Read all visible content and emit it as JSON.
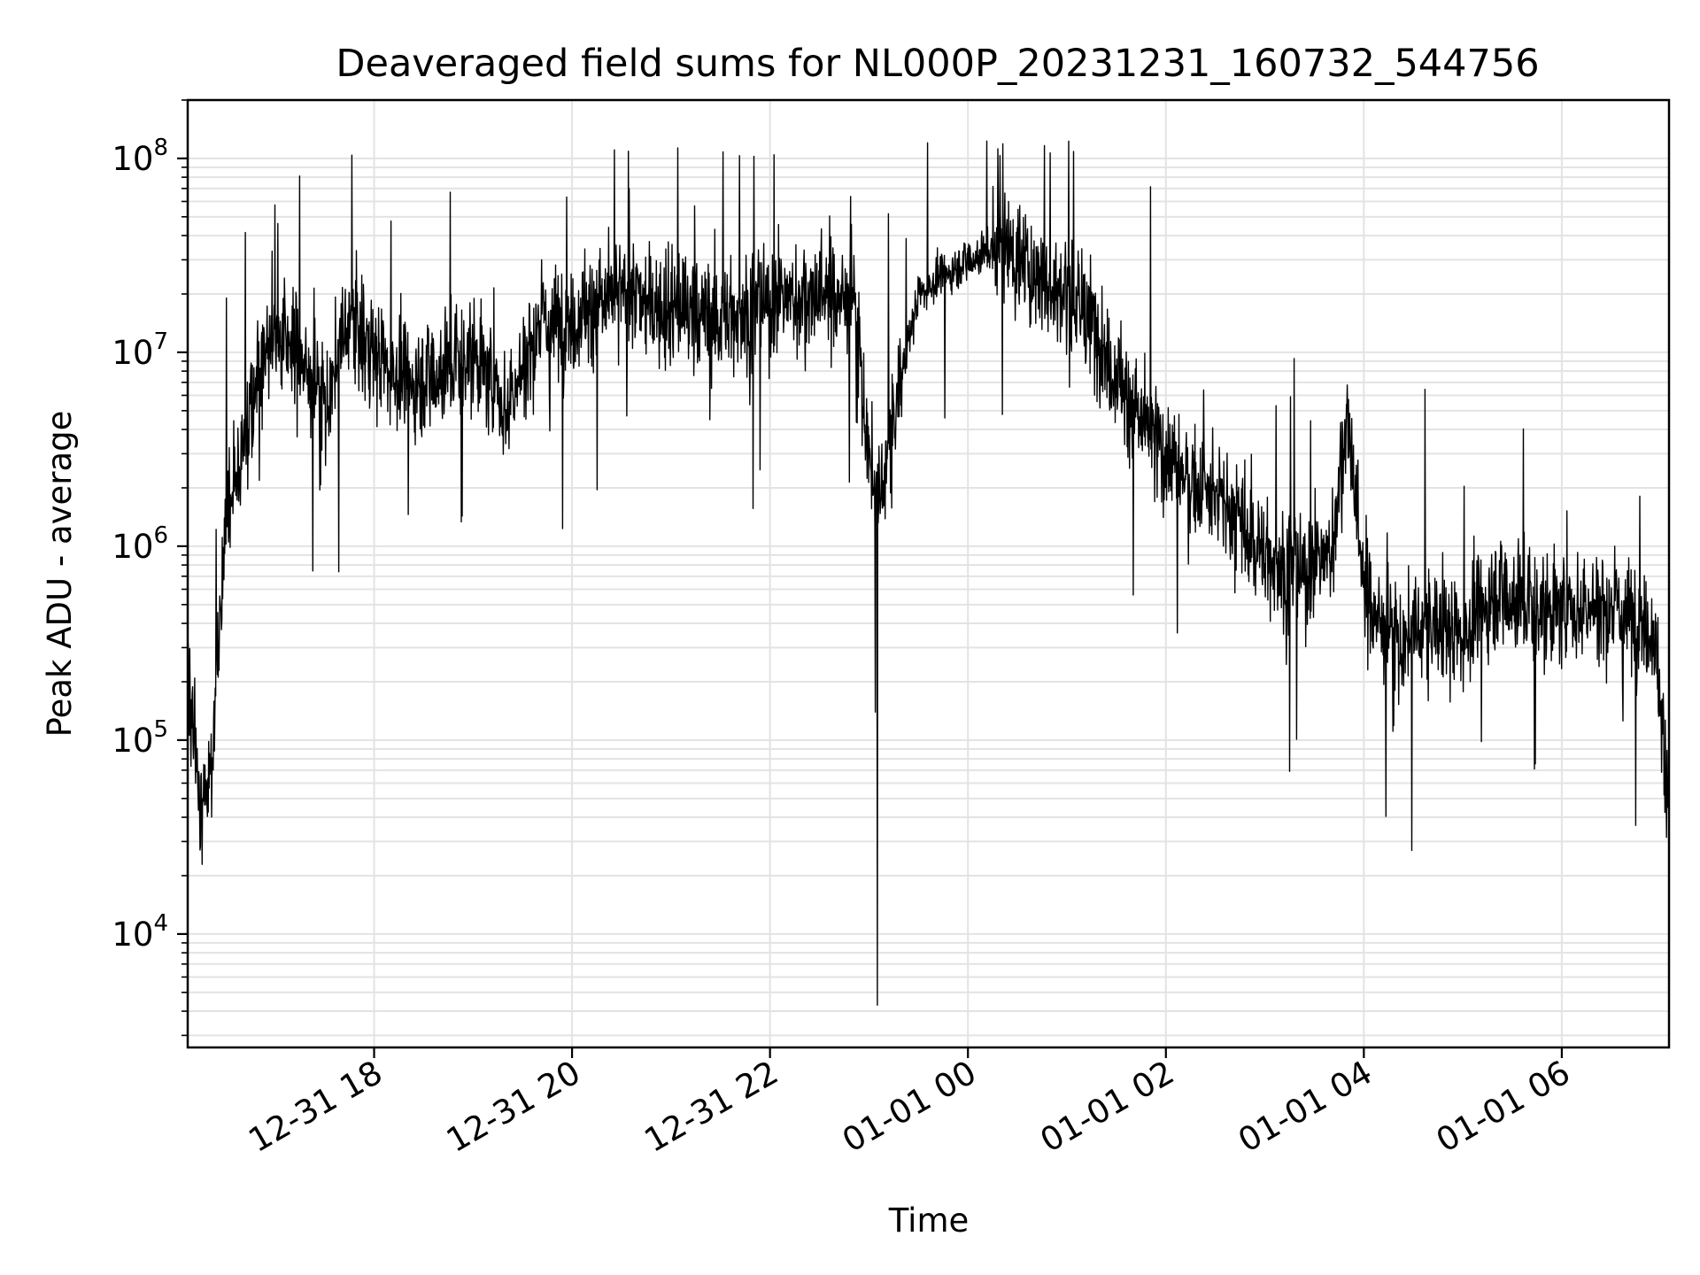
{
  "chart_data": {
    "type": "line",
    "title": "Deaveraged field sums for NL000P_20231231_160732_544756",
    "xlabel": "Time",
    "ylabel": "Peak ADU - average",
    "x_type": "datetime",
    "xlim": [
      "2023-12-31 16:07",
      "2024-01-01 07:05"
    ],
    "x_ticks": [
      {
        "value": "2023-12-31 18:00",
        "label": "12-31 18"
      },
      {
        "value": "2023-12-31 20:00",
        "label": "12-31 20"
      },
      {
        "value": "2023-12-31 22:00",
        "label": "12-31 22"
      },
      {
        "value": "2024-01-01 00:00",
        "label": "01-01 00"
      },
      {
        "value": "2024-01-01 02:00",
        "label": "01-01 02"
      },
      {
        "value": "2024-01-01 04:00",
        "label": "01-01 04"
      },
      {
        "value": "2024-01-01 06:00",
        "label": "01-01 06"
      }
    ],
    "y_scale": "log",
    "ylim": [
      2600,
      200000000
    ],
    "y_ticks": [
      {
        "value": 10000,
        "base": "10",
        "exp": "4"
      },
      {
        "value": 100000,
        "base": "10",
        "exp": "5"
      },
      {
        "value": 1000000,
        "base": "10",
        "exp": "6"
      },
      {
        "value": 10000000,
        "base": "10",
        "exp": "7"
      },
      {
        "value": 100000000,
        "base": "10",
        "exp": "8"
      }
    ],
    "grid": {
      "major": true,
      "minor_y": true
    },
    "legend": "none",
    "series": [
      {
        "color": "#000000",
        "x": [
          "2023-12-31 16:07",
          "2023-12-31 16:15",
          "2023-12-31 16:22",
          "2023-12-31 16:30",
          "2023-12-31 16:40",
          "2023-12-31 16:50",
          "2023-12-31 17:00",
          "2023-12-31 17:15",
          "2023-12-31 17:30",
          "2023-12-31 17:45",
          "2023-12-31 18:00",
          "2023-12-31 18:20",
          "2023-12-31 18:40",
          "2023-12-31 19:00",
          "2023-12-31 19:20",
          "2023-12-31 19:40",
          "2023-12-31 20:00",
          "2023-12-31 20:30",
          "2023-12-31 21:00",
          "2023-12-31 21:30",
          "2023-12-31 22:00",
          "2023-12-31 22:30",
          "2023-12-31 22:50",
          "2023-12-31 23:00",
          "2023-12-31 23:05",
          "2023-12-31 23:10",
          "2023-12-31 23:20",
          "2023-12-31 23:30",
          "2023-12-31 23:45",
          "2024-01-01 00:00",
          "2024-01-01 00:20",
          "2024-01-01 00:40",
          "2024-01-01 01:00",
          "2024-01-01 01:20",
          "2024-01-01 01:40",
          "2024-01-01 02:00",
          "2024-01-01 02:20",
          "2024-01-01 02:40",
          "2024-01-01 03:00",
          "2024-01-01 03:20",
          "2024-01-01 03:40",
          "2024-01-01 03:50",
          "2024-01-01 04:00",
          "2024-01-01 04:20",
          "2024-01-01 04:40",
          "2024-01-01 05:00",
          "2024-01-01 05:20",
          "2024-01-01 05:40",
          "2024-01-01 06:00",
          "2024-01-01 06:20",
          "2024-01-01 06:40",
          "2024-01-01 06:55",
          "2024-01-01 07:05"
        ],
        "y": [
          200000,
          40000,
          80000,
          1500000,
          3000000,
          9000000,
          12000000,
          10000000,
          5000000,
          15000000,
          10000000,
          7000000,
          8000000,
          10000000,
          5000000,
          14000000,
          15000000,
          20000000,
          17000000,
          15000000,
          18000000,
          20000000,
          20000000,
          3000000,
          1500000,
          2500000,
          8000000,
          20000000,
          25000000,
          30000000,
          35000000,
          25000000,
          20000000,
          12000000,
          5000000,
          3000000,
          2000000,
          1500000,
          900000,
          700000,
          900000,
          5000000,
          600000,
          300000,
          400000,
          350000,
          600000,
          500000,
          450000,
          500000,
          450000,
          400000,
          50000
        ]
      }
    ]
  }
}
